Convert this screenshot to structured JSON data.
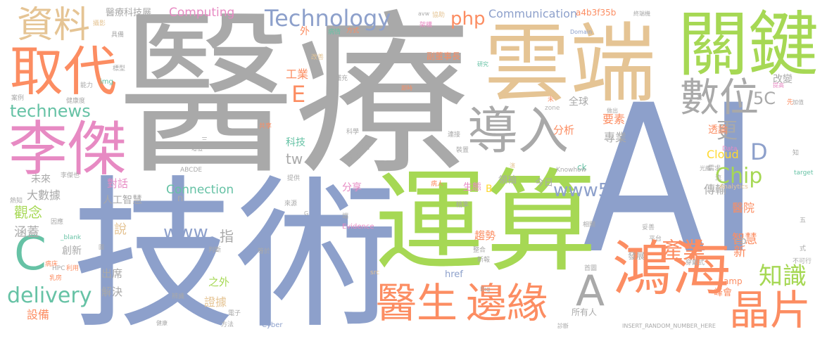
{
  "palette": {
    "gray": "#a9a9a9",
    "blue": "#8da0cb",
    "green": "#a6d854",
    "orange": "#fc8d62",
    "pink": "#e78ac3",
    "tan": "#e5c494",
    "yellow": "#ffd92f",
    "teal": "#66c2a5",
    "lightgray": "#b3b3b3"
  },
  "words": [
    {
      "text": "醫療",
      "color": "gray"
    },
    {
      "text": "AI",
      "color": "blue"
    },
    {
      "text": "技術",
      "color": "blue"
    },
    {
      "text": "運算",
      "color": "green"
    },
    {
      "text": "雲端",
      "color": "tan"
    },
    {
      "text": "關鍵",
      "color": "green"
    },
    {
      "text": "李傑",
      "color": "pink"
    },
    {
      "text": "取代",
      "color": "orange"
    },
    {
      "text": "鴻海",
      "color": "orange"
    },
    {
      "text": "資料",
      "color": "tan"
    },
    {
      "text": "導入",
      "color": "gray"
    },
    {
      "text": "數位",
      "color": "gray"
    },
    {
      "text": "醫生",
      "color": "orange"
    },
    {
      "text": "邊緣",
      "color": "orange"
    },
    {
      "text": "晶片",
      "color": "orange"
    },
    {
      "text": "Technology",
      "color": "blue"
    },
    {
      "text": "C",
      "color": "teal"
    },
    {
      "text": "A",
      "color": "gray"
    },
    {
      "text": "delivery",
      "color": "teal"
    },
    {
      "text": "technews",
      "color": "teal"
    },
    {
      "text": "Chip",
      "color": "green"
    },
    {
      "text": "php",
      "color": "orange"
    },
    {
      "text": "www5",
      "color": "blue"
    },
    {
      "text": "www",
      "color": "blue"
    },
    {
      "text": "產業",
      "color": "orange"
    },
    {
      "text": "知識",
      "color": "green"
    },
    {
      "text": "Communication",
      "color": "blue"
    },
    {
      "text": "Computing",
      "color": "pink"
    },
    {
      "text": "醫療科技展",
      "color": "gray"
    },
    {
      "text": "a4b3f35b",
      "color": "orange"
    },
    {
      "text": "Connection",
      "color": "teal"
    },
    {
      "text": "5C",
      "color": "gray"
    },
    {
      "text": "D",
      "color": "blue"
    },
    {
      "text": "E",
      "color": "orange"
    },
    {
      "text": "tw",
      "color": "gray"
    },
    {
      "text": "更",
      "color": "gray"
    },
    {
      "text": "大數據",
      "color": "gray"
    },
    {
      "text": "人工智慧",
      "color": "gray"
    },
    {
      "text": "觀念",
      "color": "green"
    },
    {
      "text": "涵蓋",
      "color": "gray"
    },
    {
      "text": "對話",
      "color": "pink"
    },
    {
      "text": "未來",
      "color": "gray"
    },
    {
      "text": "說",
      "color": "tan"
    },
    {
      "text": "指",
      "color": "gray"
    },
    {
      "text": "創新",
      "color": "gray"
    },
    {
      "text": "出席",
      "color": "gray"
    },
    {
      "text": "解決",
      "color": "gray"
    },
    {
      "text": "設備",
      "color": "orange"
    },
    {
      "text": "之外",
      "color": "green"
    },
    {
      "text": "證據",
      "color": "tan"
    },
    {
      "text": "工業",
      "color": "orange"
    },
    {
      "text": "科技",
      "color": "teal"
    },
    {
      "text": "分析",
      "color": "orange"
    },
    {
      "text": "專業",
      "color": "gray"
    },
    {
      "text": "要素",
      "color": "orange"
    },
    {
      "text": "全球",
      "color": "gray"
    },
    {
      "text": "副董事長",
      "color": "orange"
    },
    {
      "text": "Cloud",
      "color": "yellow"
    },
    {
      "text": "透論",
      "color": "orange"
    },
    {
      "text": "傳輸",
      "color": "gray"
    },
    {
      "text": "醫院",
      "color": "orange"
    },
    {
      "text": "智慧",
      "color": "orange"
    },
    {
      "text": "新",
      "color": "orange"
    },
    {
      "text": "cb",
      "color": "gray"
    },
    {
      "text": "amp",
      "color": "orange"
    },
    {
      "text": "峰會",
      "color": "orange"
    },
    {
      "text": "發展",
      "color": "gray"
    },
    {
      "text": "改變",
      "color": "gray"
    },
    {
      "text": "ck",
      "color": "teal"
    },
    {
      "text": "今日",
      "color": "gray"
    },
    {
      "text": "領袖",
      "color": "gray"
    },
    {
      "text": "生態",
      "color": "pink"
    },
    {
      "text": "B",
      "color": "yellow"
    },
    {
      "text": "分享",
      "color": "pink"
    },
    {
      "text": "趨勢",
      "color": "orange"
    },
    {
      "text": "所有人",
      "color": "gray"
    },
    {
      "text": "href",
      "color": "blue"
    },
    {
      "text": "n",
      "color": "gray"
    },
    {
      "text": "外",
      "color": "orange"
    },
    {
      "text": "Evidence",
      "color": "pink"
    },
    {
      "text": "Cyber",
      "color": "blue"
    },
    {
      "text": "INSERT_RANDOM_NUMBER_HERE",
      "color": "gray"
    },
    {
      "text": "Knowhow",
      "color": "gray"
    },
    {
      "text": "zone",
      "color": "lightgray"
    },
    {
      "text": "ABCDE",
      "color": "gray"
    },
    {
      "text": "Domain",
      "color": "blue"
    },
    {
      "text": "img",
      "color": "teal"
    },
    {
      "text": "Analytics",
      "color": "tan"
    },
    {
      "text": "Data",
      "color": "pink"
    },
    {
      "text": "target",
      "color": "teal"
    },
    {
      "text": "Big",
      "color": "gray"
    },
    {
      "text": "src",
      "color": "tan"
    },
    {
      "text": "_blank",
      "color": "teal"
    },
    {
      "text": "HPC",
      "color": "gray"
    },
    {
      "text": "avw",
      "color": "gray"
    },
    {
      "text": "方式",
      "color": "orange"
    },
    {
      "text": "架構",
      "color": "pink"
    },
    {
      "text": "協助",
      "color": "tan"
    },
    {
      "text": "終端機",
      "color": "gray"
    },
    {
      "text": "病情",
      "color": "teal"
    },
    {
      "text": "研究",
      "color": "teal"
    },
    {
      "text": "即時",
      "color": "orange"
    },
    {
      "text": "健康度",
      "color": "gray"
    },
    {
      "text": "補充",
      "color": "gray"
    },
    {
      "text": "改善",
      "color": "tan"
    },
    {
      "text": "平台",
      "color": "gray"
    },
    {
      "text": "健康",
      "color": "gray"
    },
    {
      "text": "提高",
      "color": "pink"
    },
    {
      "text": "先",
      "color": "orange"
    },
    {
      "text": "加值",
      "color": "gray"
    },
    {
      "text": "做出",
      "color": "gray"
    },
    {
      "text": "知",
      "color": "gray"
    },
    {
      "text": "光纖",
      "color": "gray"
    },
    {
      "text": "需求",
      "color": "gray"
    },
    {
      "text": "病人",
      "color": "orange"
    },
    {
      "text": "共享",
      "color": "orange"
    },
    {
      "text": "科學",
      "color": "gray"
    },
    {
      "text": "連接",
      "color": "gray"
    },
    {
      "text": "包含",
      "color": "gray"
    },
    {
      "text": "光學",
      "color": "gray"
    },
    {
      "text": "裝置",
      "color": "gray"
    },
    {
      "text": "提供",
      "color": "gray"
    },
    {
      "text": "來源",
      "color": "gray"
    },
    {
      "text": "精準",
      "color": "gray"
    },
    {
      "text": "整合",
      "color": "gray"
    },
    {
      "text": "新報",
      "color": "gray"
    },
    {
      "text": "判斷",
      "color": "gray"
    },
    {
      "text": "相關",
      "color": "gray"
    },
    {
      "text": "妥善",
      "color": "gray"
    },
    {
      "text": "首圖",
      "color": "gray"
    },
    {
      "text": "穿戴式",
      "color": "gray"
    },
    {
      "text": "不可行",
      "color": "gray"
    },
    {
      "text": "利用",
      "color": "orange"
    },
    {
      "text": "病床",
      "color": "orange"
    },
    {
      "text": "乳房",
      "color": "orange"
    },
    {
      "text": "因應",
      "color": "gray"
    },
    {
      "text": "熱知",
      "color": "gray"
    },
    {
      "text": "李傑也",
      "color": "gray"
    },
    {
      "text": "案例",
      "color": "gray"
    },
    {
      "text": "攝影",
      "color": "tan"
    },
    {
      "text": "具備",
      "color": "gray"
    },
    {
      "text": "標型",
      "color": "gray"
    },
    {
      "text": "能力",
      "color": "gray"
    },
    {
      "text": "三",
      "color": "gray"
    },
    {
      "text": "增值",
      "color": "gray"
    },
    {
      "text": "辨識",
      "color": "gray"
    },
    {
      "text": "電子",
      "color": "gray"
    },
    {
      "text": "方法",
      "color": "gray"
    },
    {
      "text": "診斷",
      "color": "gray"
    },
    {
      "text": "等於",
      "color": "gray"
    },
    {
      "text": "端",
      "color": "gray"
    },
    {
      "text": "未",
      "color": "orange"
    },
    {
      "text": "五",
      "color": "gray"
    },
    {
      "text": "式",
      "color": "gray"
    },
    {
      "text": "流",
      "color": "gray"
    },
    {
      "text": "G",
      "color": "gray"
    },
    {
      "text": "圍",
      "color": "gray"
    },
    {
      "text": "深",
      "color": "gray"
    },
    {
      "text": "演",
      "color": "tan"
    }
  ]
}
